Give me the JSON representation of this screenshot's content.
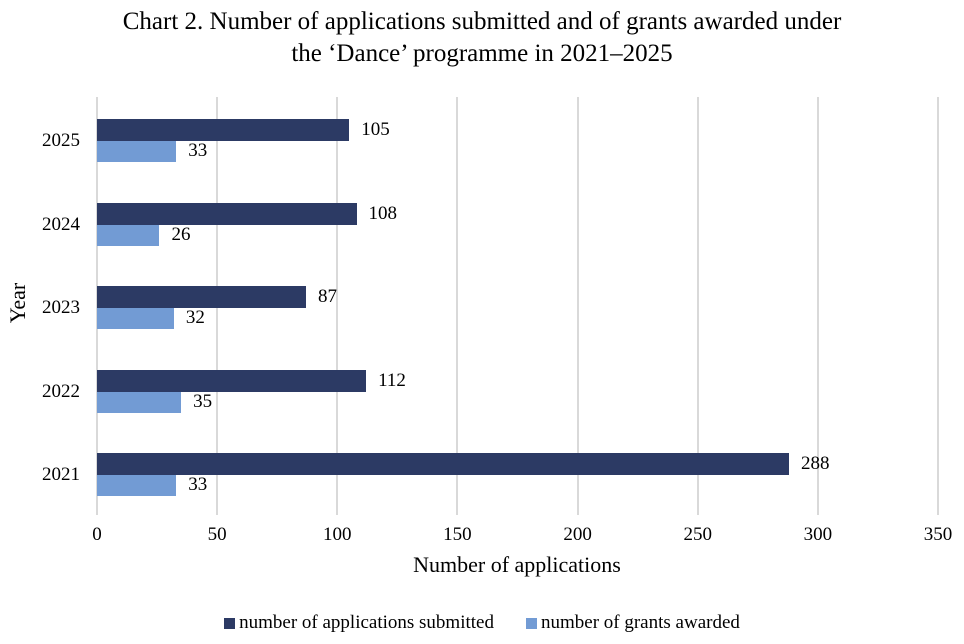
{
  "title_line1": "Chart 2. Number of applications submitted and of grants awarded under",
  "title_line2": "the ‘Dance’ programme in 2021–2025",
  "colors": {
    "submitted": "#2c3a64",
    "awarded": "#729bd4",
    "grid": "#d9d9d9"
  },
  "chart_data": {
    "type": "bar",
    "orientation": "horizontal",
    "title": "Chart 2. Number of applications submitted and of grants awarded under the ‘Dance’ programme in 2021–2025",
    "xlabel": "Number of applications",
    "ylabel": "Year",
    "categories": [
      "2025",
      "2024",
      "2023",
      "2022",
      "2021"
    ],
    "series": [
      {
        "name": "number of applications submitted",
        "values": [
          105,
          108,
          87,
          112,
          288
        ]
      },
      {
        "name": "number of grants awarded",
        "values": [
          33,
          26,
          32,
          35,
          33
        ]
      }
    ],
    "xlim": [
      0,
      350
    ],
    "xticks": [
      "0",
      "50",
      "100",
      "150",
      "200",
      "250",
      "300",
      "350"
    ],
    "grid": "vertical",
    "legend_position": "bottom",
    "data_labels": true
  }
}
